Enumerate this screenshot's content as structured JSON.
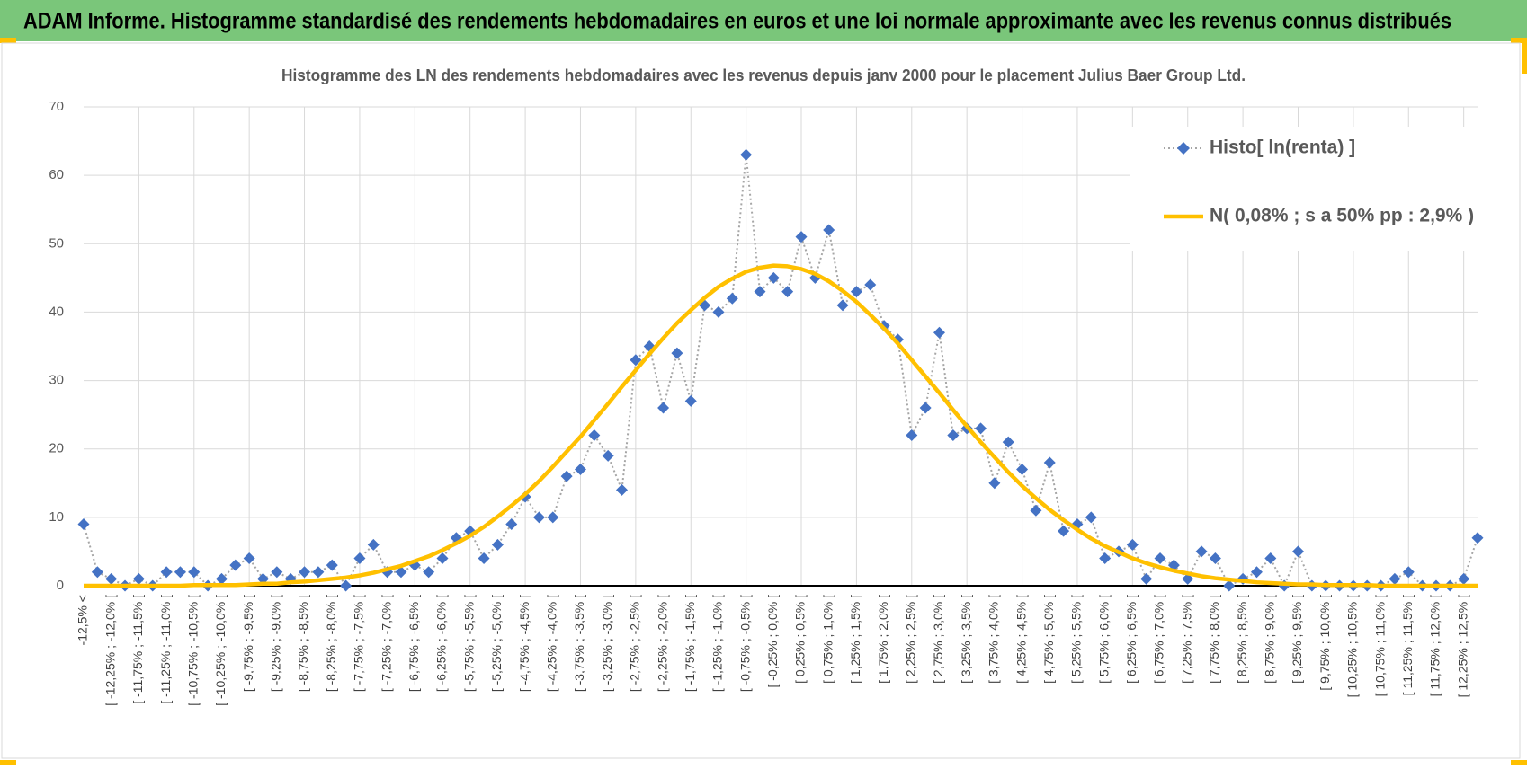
{
  "header": {
    "title": "ADAM Informe. Histogramme standardisé des rendements hebdomadaires en euros et une loi normale approximante avec les revenus connus distribués"
  },
  "chart_data": {
    "type": "line",
    "title": "Histogramme  des LN des rendements hebdomadaires avec les revenus depuis janv 2000 pour le placement Julius Baer Group Ltd.",
    "categories": [
      "-12,5% <",
      null,
      "[ -12,25% ; -12,0% [",
      null,
      "[ -11,75% ; -11,5% [",
      null,
      "[ -11,25% ; -11,0% [",
      null,
      "[ -10,75% ; -10,5% [",
      null,
      "[ -10,25% ; -10,0% [",
      null,
      "[ -9,75% ; -9,5% [",
      null,
      "[ -9,25% ; -9,0% [",
      null,
      "[ -8,75% ; -8,5% [",
      null,
      "[ -8,25% ; -8,0% [",
      null,
      "[ -7,75% ; -7,5% [",
      null,
      "[ -7,25% ; -7,0% [",
      null,
      "[ -6,75% ; -6,5% [",
      null,
      "[ -6,25% ; -6,0% [",
      null,
      "[ -5,75% ; -5,5% [",
      null,
      "[ -5,25% ; -5,0% [",
      null,
      "[ -4,75% ; -4,5% [",
      null,
      "[ -4,25% ; -4,0% [",
      null,
      "[ -3,75% ; -3,5% [",
      null,
      "[ -3,25% ; -3,0% [",
      null,
      "[ -2,75% ; -2,5% [",
      null,
      "[ -2,25% ; -2,0% [",
      null,
      "[ -1,75% ; -1,5% [",
      null,
      "[ -1,25% ; -1,0% [",
      null,
      "[ -0,75% ; -0,5% [",
      null,
      "[ -0,25% ; 0,0% [",
      null,
      "[ 0,25% ; 0,5% [",
      null,
      "[ 0,75% ; 1,0% [",
      null,
      "[ 1,25% ; 1,5% [",
      null,
      "[ 1,75% ; 2,0% [",
      null,
      "[ 2,25% ; 2,5% [",
      null,
      "[ 2,75% ; 3,0% [",
      null,
      "[ 3,25% ; 3,5% [",
      null,
      "[ 3,75% ; 4,0% [",
      null,
      "[ 4,25% ; 4,5% [",
      null,
      "[ 4,75% ; 5,0% [",
      null,
      "[ 5,25% ; 5,5% [",
      null,
      "[ 5,75% ; 6,0% [",
      null,
      "[ 6,25% ; 6,5% [",
      null,
      "[ 6,75% ; 7,0% [",
      null,
      "[ 7,25% ; 7,5% [",
      null,
      "[ 7,75% ; 8,0% [",
      null,
      "[ 8,25% ; 8,5% [",
      null,
      "[ 8,75% ; 9,0% [",
      null,
      "[ 9,25% ; 9,5% [",
      null,
      "[ 9,75% ; 10,0% [",
      null,
      "[ 10,25% ; 10,5% [",
      null,
      "[ 10,75% ; 11,0% [",
      null,
      "[ 11,25% ; 11,5% [",
      null,
      "[ 11,75% ; 12,0% [",
      null,
      "[ 12,25% ; 12,5% [",
      null
    ],
    "series": [
      {
        "name": "Histo[ ln(renta) ]",
        "color": "#4472c4",
        "line_color": "#a6a6a6",
        "line_style": "dotted",
        "marker": "diamond",
        "values": [
          9,
          2,
          1,
          0,
          1,
          0,
          2,
          2,
          2,
          0,
          1,
          3,
          4,
          1,
          2,
          1,
          2,
          2,
          3,
          0,
          4,
          6,
          2,
          2,
          3,
          2,
          4,
          7,
          8,
          4,
          6,
          9,
          13,
          10,
          10,
          16,
          17,
          22,
          19,
          14,
          33,
          35,
          26,
          34,
          27,
          41,
          40,
          42,
          63,
          43,
          45,
          43,
          51,
          45,
          52,
          41,
          43,
          44,
          38,
          36,
          22,
          26,
          37,
          22,
          23,
          23,
          15,
          21,
          17,
          11,
          18,
          8,
          9,
          10,
          4,
          5,
          6,
          1,
          4,
          3,
          1,
          5,
          4,
          0,
          1,
          2,
          4,
          0,
          5,
          0,
          0,
          0,
          0,
          0,
          0,
          1,
          2,
          0,
          0,
          0,
          1,
          7
        ]
      },
      {
        "name": "N( 0,08% ; s a 50% pp : 2,9% )",
        "color": "#ffc000",
        "line_style": "solid",
        "marker": "none",
        "values": [
          0.0,
          0.0,
          0.0,
          0.0,
          0.0,
          0.0,
          0.0,
          0.0,
          0.1,
          0.1,
          0.1,
          0.1,
          0.2,
          0.3,
          0.3,
          0.5,
          0.6,
          0.8,
          1.0,
          1.2,
          1.5,
          1.9,
          2.4,
          2.9,
          3.6,
          4.3,
          5.2,
          6.2,
          7.3,
          8.6,
          10.1,
          11.7,
          13.4,
          15.3,
          17.4,
          19.6,
          21.8,
          24.2,
          26.6,
          29.1,
          31.5,
          33.9,
          36.2,
          38.4,
          40.3,
          42.1,
          43.7,
          44.9,
          45.9,
          46.5,
          46.8,
          46.7,
          46.3,
          45.6,
          44.5,
          43.1,
          41.5,
          39.6,
          37.6,
          35.4,
          33.0,
          30.6,
          28.2,
          25.7,
          23.3,
          21.0,
          18.8,
          16.6,
          14.6,
          12.8,
          11.1,
          9.6,
          8.2,
          6.9,
          5.8,
          4.9,
          4.0,
          3.3,
          2.7,
          2.2,
          1.8,
          1.4,
          1.1,
          0.9,
          0.7,
          0.5,
          0.4,
          0.3,
          0.2,
          0.2,
          0.1,
          0.1,
          0.1,
          0.1,
          0.0,
          0.0,
          0.0,
          0.0,
          0.0,
          0.0,
          0.0,
          0.0
        ]
      }
    ],
    "ylim": [
      0,
      70
    ],
    "yticks": [
      0,
      10,
      20,
      30,
      40,
      50,
      60,
      70
    ],
    "grid": true,
    "legend_position": "top-right"
  }
}
